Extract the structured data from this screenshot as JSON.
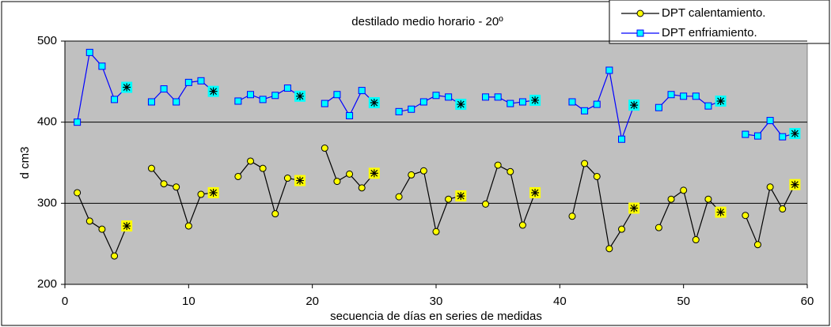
{
  "chart_data": {
    "type": "line",
    "title": "destilado medio horario - 20º",
    "xlabel": "secuencia de días en series de medidas",
    "ylabel": "d cm3",
    "x": [
      1,
      2,
      3,
      4,
      5,
      6,
      7,
      8,
      9,
      10,
      11,
      12,
      13,
      14,
      15,
      16,
      17,
      18,
      19,
      20,
      21,
      22,
      23,
      24,
      25,
      26,
      27,
      28,
      29,
      30,
      31,
      32,
      33,
      34,
      35,
      36,
      37,
      38,
      39,
      40,
      41,
      42,
      43,
      44,
      45,
      46,
      47,
      48,
      49,
      50,
      51,
      52,
      53,
      54,
      55,
      56,
      57,
      58,
      59
    ],
    "series": [
      {
        "name": "DPT calentamiento.",
        "color": "#ffff00",
        "values": [
          313,
          278,
          268,
          235,
          272,
          null,
          343,
          324,
          320,
          272,
          311,
          313,
          null,
          333,
          352,
          343,
          287,
          331,
          328,
          null,
          368,
          327,
          336,
          319,
          337,
          null,
          308,
          335,
          340,
          265,
          305,
          309,
          null,
          299,
          347,
          339,
          273,
          313,
          null,
          null,
          284,
          349,
          333,
          244,
          268,
          294,
          null,
          270,
          305,
          316,
          255,
          305,
          289,
          null,
          285,
          249,
          320,
          293,
          323
        ]
      },
      {
        "name": "DPT enfriamiento.",
        "color": "#0000ff",
        "values": [
          400,
          486,
          469,
          428,
          443,
          null,
          425,
          441,
          425,
          449,
          451,
          438,
          null,
          426,
          434,
          428,
          433,
          442,
          432,
          null,
          423,
          434,
          408,
          439,
          424,
          null,
          413,
          416,
          425,
          433,
          431,
          422,
          null,
          431,
          431,
          423,
          425,
          427,
          null,
          null,
          425,
          414,
          422,
          464,
          379,
          421,
          null,
          418,
          434,
          432,
          432,
          420,
          426,
          null,
          385,
          383,
          402,
          382,
          386
        ]
      }
    ],
    "xlim": [
      0,
      60
    ],
    "xticks": [
      0,
      10,
      20,
      30,
      40,
      50,
      60
    ],
    "ylim": [
      200,
      500
    ],
    "yticks": [
      200,
      300,
      400,
      500
    ],
    "grid": true,
    "legend": "top-right"
  }
}
